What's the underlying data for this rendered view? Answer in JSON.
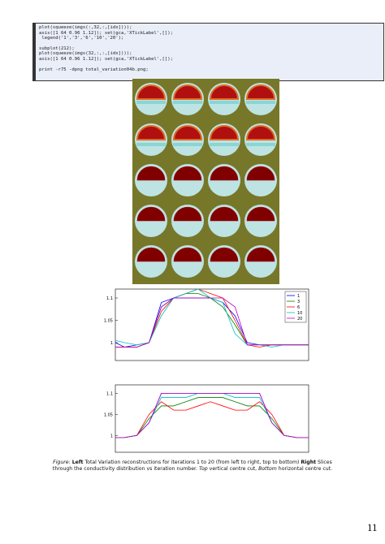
{
  "code": {
    "blocks": [
      [
        "plot(squeeze(imgs(:,32,:,[idx])));",
        "axis([1 64 0.96 1.12]); set(gca,'XTickLabel',[]);",
        " legend('1','3','6','10','20');"
      ],
      [
        "subplot(212);",
        "plot(squeeze(imgs(32,:,:,[idx])));",
        "axis([1 64 0.96 1.12]); set(gca,'XTickLabel',[]);"
      ],
      [
        "print -r75 -dpng total_variation04b.png;"
      ]
    ]
  },
  "chart_data": [
    {
      "type": "line",
      "x": [
        1,
        4,
        8,
        12,
        16,
        20,
        24,
        28,
        32,
        36,
        40,
        44,
        48,
        52,
        56,
        60,
        64
      ],
      "xlim": [
        1,
        64
      ],
      "ylim": [
        0.96,
        1.12
      ],
      "yticks": [
        1,
        1.05,
        1.1
      ],
      "legend": "upper right",
      "series": [
        {
          "name": "1",
          "color": "#0000ff",
          "values": [
            1.0,
            0.99,
            0.995,
            1.0,
            1.09,
            1.1,
            1.1,
            1.1,
            1.1,
            1.09,
            1.06,
            1.0,
            0.995,
            0.995,
            0.995,
            0.995,
            0.995
          ]
        },
        {
          "name": "3",
          "color": "#008000",
          "values": [
            0.99,
            0.99,
            0.99,
            1.0,
            1.08,
            1.1,
            1.11,
            1.11,
            1.1,
            1.08,
            1.04,
            0.995,
            0.995,
            0.995,
            0.995,
            0.995,
            0.995
          ]
        },
        {
          "name": "6",
          "color": "#ff0000",
          "values": [
            0.99,
            0.99,
            0.99,
            1.0,
            1.07,
            1.1,
            1.11,
            1.12,
            1.11,
            1.1,
            1.05,
            0.995,
            0.99,
            0.995,
            0.995,
            0.995,
            0.995
          ]
        },
        {
          "name": "10",
          "color": "#00bfbf",
          "values": [
            1.005,
            1.0,
            0.995,
            1.0,
            1.06,
            1.1,
            1.11,
            1.12,
            1.1,
            1.09,
            1.02,
            0.995,
            0.995,
            0.99,
            0.995,
            0.995,
            0.995
          ]
        },
        {
          "name": "20",
          "color": "#bf00bf",
          "values": [
            0.99,
            0.99,
            0.99,
            1.0,
            1.08,
            1.1,
            1.1,
            1.1,
            1.1,
            1.1,
            1.08,
            0.995,
            0.995,
            0.995,
            0.995,
            0.995,
            0.995
          ]
        }
      ]
    },
    {
      "type": "line",
      "x": [
        1,
        4,
        8,
        12,
        16,
        20,
        24,
        28,
        32,
        36,
        40,
        44,
        48,
        52,
        56,
        60,
        64
      ],
      "xlim": [
        1,
        64
      ],
      "ylim": [
        0.96,
        1.12
      ],
      "yticks": [
        1,
        1.05,
        1.1
      ],
      "series": [
        {
          "color": "#0000ff",
          "values": [
            0.995,
            0.995,
            1.0,
            1.03,
            1.1,
            1.1,
            1.1,
            1.1,
            1.1,
            1.1,
            1.1,
            1.1,
            1.1,
            1.03,
            1.0,
            0.995,
            0.995
          ]
        },
        {
          "color": "#008000",
          "values": [
            0.995,
            0.995,
            1.0,
            1.04,
            1.07,
            1.07,
            1.08,
            1.09,
            1.09,
            1.09,
            1.08,
            1.07,
            1.07,
            1.04,
            1.0,
            0.995,
            0.995
          ]
        },
        {
          "color": "#ff0000",
          "values": [
            0.995,
            0.995,
            1.0,
            1.05,
            1.08,
            1.06,
            1.06,
            1.07,
            1.08,
            1.07,
            1.06,
            1.06,
            1.08,
            1.05,
            1.0,
            0.995,
            0.995
          ]
        },
        {
          "color": "#00bfbf",
          "values": [
            0.995,
            0.995,
            1.0,
            1.03,
            1.09,
            1.09,
            1.09,
            1.1,
            1.1,
            1.1,
            1.09,
            1.09,
            1.09,
            1.03,
            1.0,
            0.995,
            0.995
          ]
        },
        {
          "color": "#bf00bf",
          "values": [
            0.995,
            0.995,
            1.0,
            1.03,
            1.1,
            1.1,
            1.1,
            1.1,
            1.1,
            1.1,
            1.1,
            1.1,
            1.1,
            1.03,
            1.0,
            0.995,
            0.995
          ]
        }
      ]
    }
  ],
  "caption": {
    "label": "Figure:",
    "left": "Left",
    "left_text": "Total Variation reconstructions for iterations 1 to 20 (from left to right, top to bottom)",
    "right": "Right",
    "right_text": "Slices through the conductivity distribution vs iteration number.",
    "top": "Top",
    "top_text": "vertical centre cut,",
    "bottom": "Bottom",
    "bottom_text": "horizontal centre cut."
  },
  "page_number": "11"
}
